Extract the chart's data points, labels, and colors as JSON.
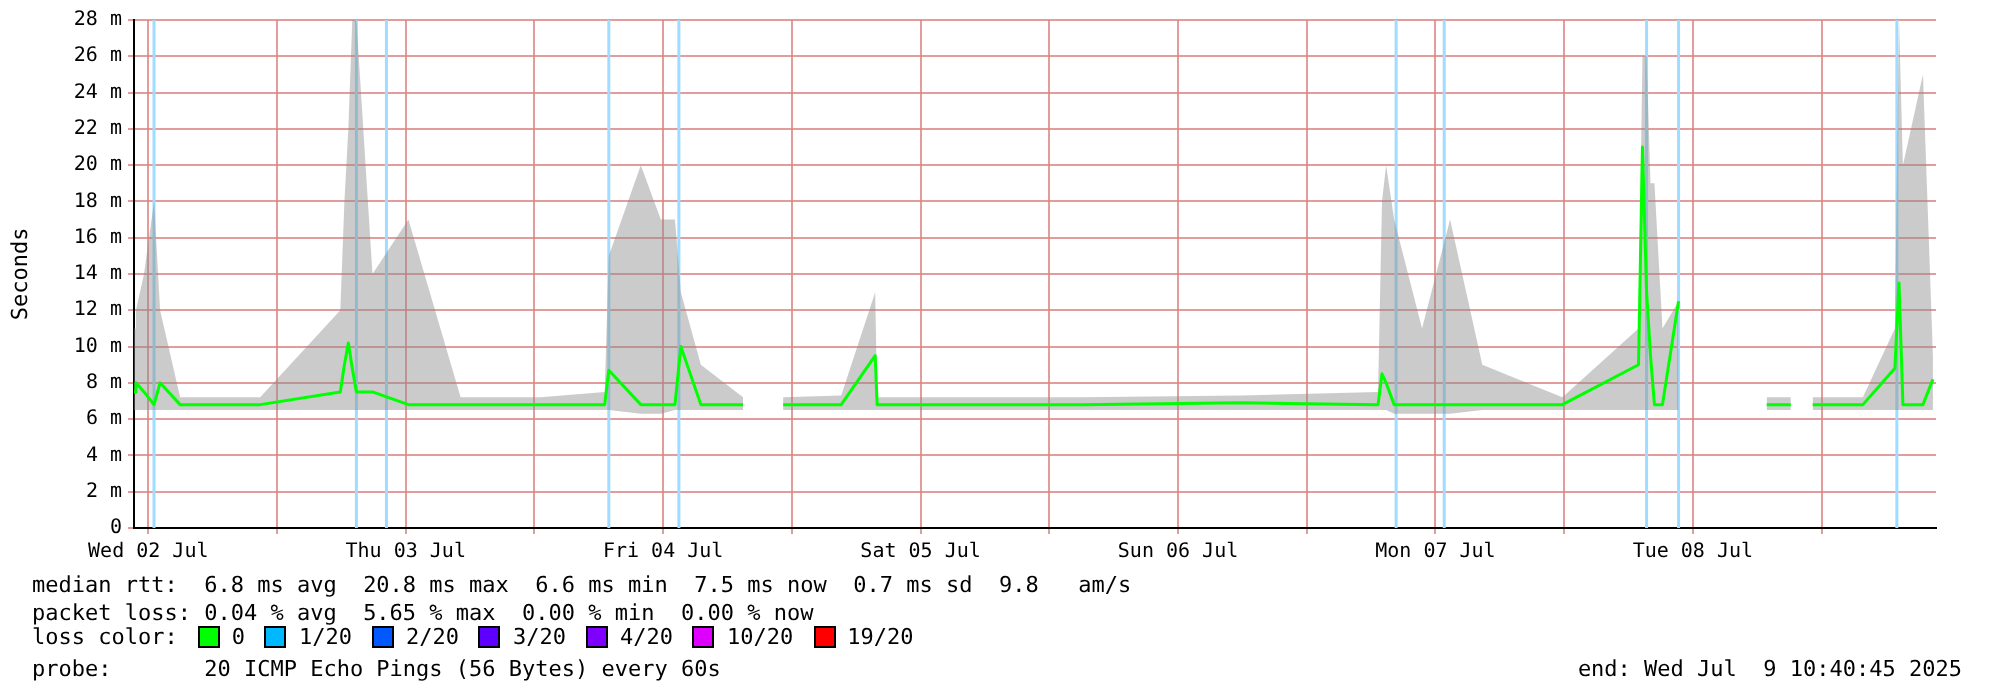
{
  "chart_data": {
    "type": "line",
    "ylabel": "Seconds",
    "legend_title": "loss color:",
    "legend": "bottom",
    "grid": true,
    "marker": "none",
    "line_style": "solid",
    "annotations": [
      "median rtt:  6.8 ms avg  20.8 ms max  6.6 ms min  7.5 ms now  0.7 ms sd  9.8   am/s",
      "packet loss: 0.04 % avg  5.65 % max  0.00 % min  0.00 % now",
      "probe:       20 ICMP Echo Pings (56 Bytes) every 60s",
      "end: Wed Jul  9 10:40:45 2025"
    ],
    "xlim": [
      "2025-07-02T10:40",
      "2025-07-09T10:40"
    ],
    "xticks": [
      {
        "value": "2025-07-02T12:00",
        "label": "Wed 02 Jul"
      },
      {
        "value": "2025-07-03T00:00",
        "label": null
      },
      {
        "value": "2025-07-03T12:00",
        "label": "Thu 03 Jul"
      },
      {
        "value": "2025-07-04T00:00",
        "label": null
      },
      {
        "value": "2025-07-04T12:00",
        "label": "Fri 04 Jul"
      },
      {
        "value": "2025-07-05T00:00",
        "label": null
      },
      {
        "value": "2025-07-05T12:00",
        "label": "Sat 05 Jul"
      },
      {
        "value": "2025-07-06T00:00",
        "label": null
      },
      {
        "value": "2025-07-06T12:00",
        "label": "Sun 06 Jul"
      },
      {
        "value": "2025-07-07T00:00",
        "label": null
      },
      {
        "value": "2025-07-07T12:00",
        "label": "Mon 07 Jul"
      },
      {
        "value": "2025-07-08T00:00",
        "label": null
      },
      {
        "value": "2025-07-08T12:00",
        "label": "Tue 08 Jul"
      },
      {
        "value": "2025-07-09T00:00",
        "label": null
      }
    ],
    "ylim": [
      0,
      28
    ],
    "yticks": [
      0,
      {
        "value": 2,
        "label": "2 m"
      },
      {
        "value": 4,
        "label": "4 m"
      },
      {
        "value": 6,
        "label": "6 m"
      },
      {
        "value": 8,
        "label": "8 m"
      },
      {
        "value": 10,
        "label": "10 m"
      },
      {
        "value": 12,
        "label": "12 m"
      },
      {
        "value": 14,
        "label": "14 m"
      },
      {
        "value": 16,
        "label": "16 m"
      },
      {
        "value": 18,
        "label": "18 m"
      },
      {
        "value": 20,
        "label": "20 m"
      },
      {
        "value": 22,
        "label": "22 m"
      },
      {
        "value": 24,
        "label": "24 m"
      },
      {
        "value": 26,
        "label": "26 m"
      },
      {
        "value": 28,
        "label": "28 m"
      }
    ],
    "x": [
      "2025-07-02T10:40",
      "2025-07-02T10:51",
      "2025-07-02T11:36",
      "2025-07-02T12:32",
      "2025-07-02T13:06",
      "2025-07-02T14:58",
      "2025-07-02T22:26",
      "2025-07-03T05:54",
      "2025-07-03T06:17",
      "2025-07-03T06:39",
      "2025-07-03T07:01",
      "2025-07-03T07:24",
      "2025-07-03T08:54",
      "2025-07-03T12:15",
      "2025-07-03T17:07",
      "2025-07-04T00:35",
      "2025-07-04T06:33",
      "2025-07-04T06:56",
      "2025-07-04T09:55",
      "2025-07-04T11:47",
      "2025-07-04T13:06",
      "2025-07-04T13:39",
      "2025-07-04T15:31",
      "2025-07-04T19:27",
      "2025-07-04T19:38",
      "2025-07-04T23:11",
      "2025-07-05T04:36",
      "2025-07-05T07:46",
      "2025-07-05T07:57",
      "2025-07-05T15:48",
      "2025-07-06T03:00",
      "2025-07-06T17:57",
      "2025-07-07T06:39",
      "2025-07-07T07:01",
      "2025-07-07T07:24",
      "2025-07-07T08:09",
      "2025-07-07T10:45",
      "2025-07-07T13:22",
      "2025-07-07T16:22",
      "2025-07-07T23:50",
      "2025-07-08T06:56",
      "2025-07-08T07:18",
      "2025-07-08T07:41",
      "2025-07-08T08:03",
      "2025-07-08T08:25",
      "2025-07-08T09:10",
      "2025-07-08T10:40",
      "2025-07-08T10:51",
      "2025-07-08T18:53",
      "2025-07-08T21:08",
      "2025-07-08T21:19",
      "2025-07-08T23:10",
      "2025-07-09T03:51",
      "2025-07-09T06:50",
      "2025-07-09T07:13",
      "2025-07-09T07:35",
      "2025-07-09T09:27",
      "2025-07-09T10:23"
    ],
    "series": [
      {
        "name": "0",
        "color": "#00ff00",
        "values": [
          7.5,
          8,
          7.5,
          6.8,
          8,
          6.8,
          6.8,
          7.5,
          9,
          10.2,
          8.8,
          7.5,
          7.5,
          6.8,
          6.8,
          6.8,
          6.8,
          8.7,
          6.8,
          6.8,
          6.8,
          10,
          6.8,
          6.8,
          null,
          6.8,
          6.8,
          9.5,
          6.8,
          6.8,
          6.8,
          6.9,
          6.8,
          8.5,
          8,
          6.8,
          6.8,
          6.8,
          6.8,
          6.8,
          9,
          21,
          13,
          9.5,
          6.8,
          6.8,
          12.5,
          null,
          6.8,
          6.8,
          null,
          6.8,
          6.8,
          8.8,
          13.5,
          6.8,
          6.8,
          8.2
        ],
        "lower": [
          6.5,
          6.5,
          6.5,
          6.5,
          6.5,
          6.5,
          6.5,
          6.5,
          6.5,
          6.5,
          6.5,
          6.5,
          6.5,
          6.5,
          6.5,
          6.5,
          6.5,
          6.5,
          6.3,
          6.3,
          6.5,
          6.5,
          6.5,
          6.5,
          null,
          6.5,
          6.5,
          6.5,
          6.5,
          6.5,
          6.5,
          6.5,
          6.5,
          6.5,
          6.5,
          6.3,
          6.3,
          6.3,
          6.5,
          6.5,
          6.5,
          6.5,
          6.5,
          6.5,
          6.5,
          6.5,
          6.5,
          null,
          6.5,
          6.5,
          null,
          6.5,
          6.5,
          6.5,
          6.5,
          6.5,
          6.5,
          6.5
        ],
        "upper": [
          11,
          12,
          14,
          18,
          12,
          7.2,
          7.2,
          12,
          18,
          22,
          28,
          28,
          14,
          17,
          7.2,
          7.2,
          7.5,
          15,
          20,
          17,
          17,
          13,
          9,
          7.2,
          null,
          7.2,
          7.3,
          13,
          7.2,
          7.2,
          7.2,
          7.3,
          7.5,
          18,
          20,
          17,
          11,
          17,
          9,
          7.2,
          11,
          26,
          26,
          19,
          19,
          11,
          12.5,
          null,
          7.2,
          7.2,
          null,
          7.2,
          7.2,
          11,
          28,
          20,
          25,
          9.5
        ]
      },
      {
        "name": "1/20",
        "color": "#00b8ff",
        "values": [
          null,
          null,
          null,
          null,
          null,
          null,
          null,
          null,
          null,
          null,
          null,
          null,
          null,
          null,
          null,
          null,
          null,
          null,
          null,
          null,
          null,
          null,
          null,
          null,
          null,
          null,
          null,
          null,
          null,
          null,
          null,
          null,
          null,
          null,
          null,
          null,
          null,
          null,
          null,
          null,
          null,
          null,
          null,
          null,
          null,
          null,
          null,
          null,
          null,
          null,
          null,
          null,
          null,
          null,
          null,
          null,
          null,
          null
        ]
      },
      {
        "name": "2/20",
        "color": "#0059ff",
        "values": [
          null,
          null,
          null,
          null,
          null,
          null,
          null,
          null,
          null,
          null,
          null,
          null,
          null,
          null,
          null,
          null,
          null,
          null,
          null,
          null,
          null,
          null,
          null,
          null,
          null,
          null,
          null,
          null,
          null,
          null,
          null,
          null,
          null,
          null,
          null,
          null,
          null,
          null,
          null,
          null,
          null,
          null,
          null,
          null,
          null,
          null,
          null,
          null,
          null,
          null,
          null,
          null,
          null,
          null,
          null,
          null,
          null,
          null
        ]
      },
      {
        "name": "3/20",
        "color": "#5e00ff",
        "values": [
          null,
          null,
          null,
          null,
          null,
          null,
          null,
          null,
          null,
          null,
          null,
          null,
          null,
          null,
          null,
          null,
          null,
          null,
          null,
          null,
          null,
          null,
          null,
          null,
          null,
          null,
          null,
          null,
          null,
          null,
          null,
          null,
          null,
          null,
          null,
          null,
          null,
          null,
          null,
          null,
          null,
          null,
          null,
          null,
          null,
          null,
          null,
          null,
          null,
          null,
          null,
          null,
          null,
          null,
          null,
          null,
          null,
          null
        ]
      },
      {
        "name": "4/20",
        "color": "#7e00ff",
        "values": [
          null,
          null,
          null,
          null,
          null,
          null,
          null,
          null,
          null,
          null,
          null,
          null,
          null,
          null,
          null,
          null,
          null,
          null,
          null,
          null,
          null,
          null,
          null,
          null,
          null,
          null,
          null,
          null,
          null,
          null,
          null,
          null,
          null,
          null,
          null,
          null,
          null,
          null,
          null,
          null,
          null,
          null,
          null,
          null,
          null,
          null,
          null,
          null,
          null,
          null,
          null,
          null,
          null,
          null,
          null,
          null,
          null,
          null
        ]
      },
      {
        "name": "10/20",
        "color": "#dd00ff",
        "values": [
          null,
          null,
          null,
          null,
          null,
          null,
          null,
          null,
          null,
          null,
          null,
          null,
          null,
          null,
          null,
          null,
          null,
          null,
          null,
          null,
          null,
          null,
          null,
          null,
          null,
          null,
          null,
          null,
          null,
          null,
          null,
          null,
          null,
          null,
          null,
          null,
          null,
          null,
          null,
          null,
          null,
          null,
          null,
          null,
          null,
          null,
          null,
          null,
          null,
          null,
          null,
          null,
          null,
          null,
          null,
          null,
          null,
          null
        ]
      },
      {
        "name": "19/20",
        "color": "#ff0000",
        "values": [
          null,
          null,
          null,
          null,
          null,
          null,
          null,
          null,
          null,
          null,
          null,
          null,
          null,
          null,
          null,
          null,
          null,
          null,
          null,
          null,
          null,
          null,
          null,
          null,
          null,
          null,
          null,
          null,
          null,
          null,
          null,
          null,
          null,
          null,
          null,
          null,
          null,
          null,
          null,
          null,
          null,
          null,
          null,
          null,
          null,
          null,
          null,
          null,
          null,
          null,
          null,
          null,
          null,
          null,
          null,
          null,
          null,
          null
        ]
      }
    ],
    "ref_lines": [
      {
        "axis": "x",
        "value": "2025-07-02T12:32",
        "color": "#9fdcff"
      },
      {
        "axis": "x",
        "value": "2025-07-03T07:24",
        "color": "#9fdcff"
      },
      {
        "axis": "x",
        "value": "2025-07-03T10:12",
        "color": "#9fdcff"
      },
      {
        "axis": "x",
        "value": "2025-07-04T06:56",
        "color": "#9fdcff"
      },
      {
        "axis": "x",
        "value": "2025-07-04T13:28",
        "color": "#9fdcff"
      },
      {
        "axis": "x",
        "value": "2025-07-07T08:20",
        "color": "#9fdcff"
      },
      {
        "axis": "x",
        "value": "2025-07-07T12:49",
        "color": "#9fdcff"
      },
      {
        "axis": "x",
        "value": "2025-07-08T07:41",
        "color": "#9fdcff"
      },
      {
        "axis": "x",
        "value": "2025-07-08T10:40",
        "color": "#9fdcff"
      },
      {
        "axis": "x",
        "value": "2025-07-09T07:01",
        "color": "#9fdcff"
      }
    ]
  }
}
